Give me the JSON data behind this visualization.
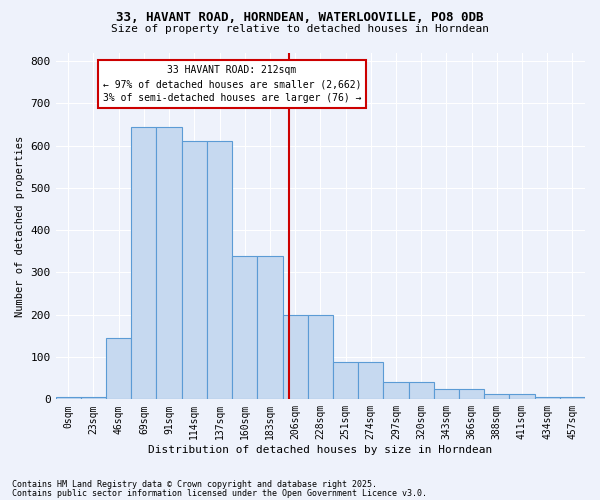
{
  "title_line1": "33, HAVANT ROAD, HORNDEAN, WATERLOOVILLE, PO8 0DB",
  "title_line2": "Size of property relative to detached houses in Horndean",
  "xlabel": "Distribution of detached houses by size in Horndean",
  "ylabel": "Number of detached properties",
  "bin_labels": [
    "0sqm",
    "23sqm",
    "46sqm",
    "69sqm",
    "91sqm",
    "114sqm",
    "137sqm",
    "160sqm",
    "183sqm",
    "206sqm",
    "228sqm",
    "251sqm",
    "274sqm",
    "297sqm",
    "320sqm",
    "343sqm",
    "366sqm",
    "388sqm",
    "411sqm",
    "434sqm",
    "457sqm"
  ],
  "heights": [
    5,
    5,
    145,
    645,
    645,
    610,
    610,
    340,
    340,
    200,
    200,
    88,
    88,
    42,
    42,
    25,
    25,
    12,
    12,
    5,
    5
  ],
  "bar_color": "#c6d9f0",
  "bar_edge_color": "#5b9bd5",
  "vline_color": "#cc0000",
  "annotation_title": "33 HAVANT ROAD: 212sqm",
  "annotation_line2": "← 97% of detached houses are smaller (2,662)",
  "annotation_line3": "3% of semi-detached houses are larger (76) →",
  "annotation_box_color": "#cc0000",
  "background_color": "#eef2fb",
  "grid_color": "#ffffff",
  "footnote_line1": "Contains HM Land Registry data © Crown copyright and database right 2025.",
  "footnote_line2": "Contains public sector information licensed under the Open Government Licence v3.0.",
  "ylim": [
    0,
    820
  ],
  "yticks": [
    0,
    100,
    200,
    300,
    400,
    500,
    600,
    700,
    800
  ]
}
